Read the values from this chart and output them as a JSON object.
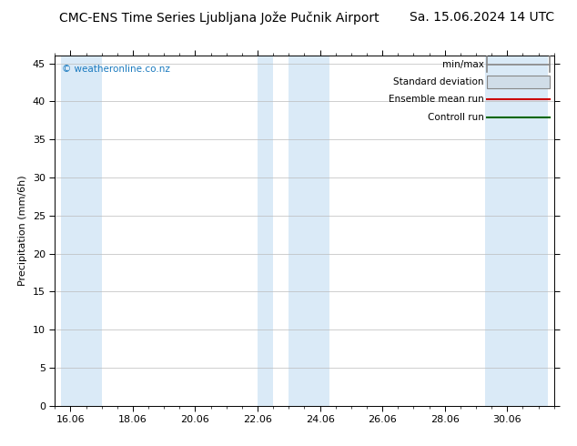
{
  "title_left": "CMC-ENS Time Series Ljubljana Jože Pučnik Airport",
  "title_right": "Sa. 15.06.2024 14 UTC",
  "ylabel": "Precipitation (mm/6h)",
  "ylim": [
    0,
    46
  ],
  "yticks": [
    0,
    5,
    10,
    15,
    20,
    25,
    30,
    35,
    40,
    45
  ],
  "xlim_start": -0.3,
  "xlim_end": 15.3,
  "xtick_labels": [
    "16.06",
    "18.06",
    "20.06",
    "22.06",
    "24.06",
    "26.06",
    "28.06",
    "30.06"
  ],
  "xtick_positions": [
    0,
    2,
    4,
    6,
    8,
    10,
    12,
    14
  ],
  "shaded_bands": [
    {
      "xmin": -0.3,
      "xmax": 1.0,
      "color": "#daeaf7"
    },
    {
      "xmin": 6.0,
      "xmax": 6.5,
      "color": "#daeaf7"
    },
    {
      "xmin": 7.0,
      "xmax": 8.3,
      "color": "#daeaf7"
    },
    {
      "xmin": 13.3,
      "xmax": 15.3,
      "color": "#daeaf7"
    }
  ],
  "background_color": "#ffffff",
  "watermark": "© weatheronline.co.nz",
  "watermark_color": "#1a7abf",
  "legend_labels": [
    "min/max",
    "Standard deviation",
    "Ensemble mean run",
    "Controll run"
  ],
  "minmax_color": "#888888",
  "stddev_fill_color": "#d0dde8",
  "stddev_edge_color": "#888888",
  "ensemble_color": "#cc0000",
  "control_color": "#006600",
  "grid_color": "#bbbbbb",
  "title_fontsize": 10,
  "tick_fontsize": 8,
  "ylabel_fontsize": 8,
  "legend_fontsize": 7.5
}
